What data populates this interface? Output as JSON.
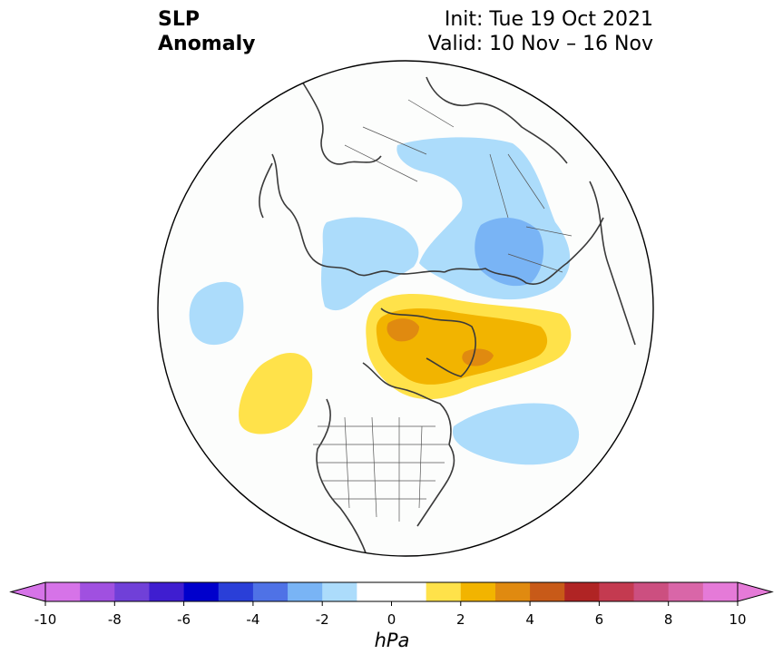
{
  "title": {
    "left_line1": "SLP",
    "left_line2": "Anomaly",
    "right_line1": "Init: Tue 19 Oct 2021",
    "right_line2": "Valid: 10 Nov – 16 Nov"
  },
  "colorbar": {
    "min": -10,
    "max": 10,
    "step": 1,
    "unit": "hPa",
    "ticks": [
      "-10",
      "-8",
      "-6",
      "-4",
      "-2",
      "0",
      "2",
      "4",
      "6",
      "8",
      "10"
    ],
    "tick_values": [
      -10,
      -8,
      -6,
      -4,
      -2,
      0,
      2,
      4,
      6,
      8,
      10
    ],
    "colors": [
      "#d673e8",
      "#a050e0",
      "#7040d8",
      "#3f1ed0",
      "#0000cc",
      "#2a3fd8",
      "#4f72e6",
      "#79b4f5",
      "#acdcfb",
      "#ffffff",
      "#ffffff",
      "#ffe24a",
      "#f2b400",
      "#e08a10",
      "#c85a18",
      "#b02424",
      "#c43a50",
      "#cc4f80",
      "#d966a8",
      "#e57ad8"
    ],
    "extend_low_color": "#d673e8",
    "extend_high_color": "#e57ad8"
  },
  "map": {
    "projection": "north polar stereographic",
    "anomaly_features": [
      {
        "label": "negative anomaly over Scandinavia / Barents Sea",
        "level_hpa": -2
      },
      {
        "label": "stronger negative anomaly over northern Europe",
        "level_hpa": -3
      },
      {
        "label": "negative anomaly over East Siberian Sea / Alaska",
        "level_hpa": -2
      },
      {
        "label": "negative anomaly over western Pacific",
        "level_hpa": -2
      },
      {
        "label": "negative anomaly over eastern Canada / Atlantic",
        "level_hpa": -2
      },
      {
        "label": "positive anomaly over Greenland / Canadian Arctic",
        "level_hpa": 3
      },
      {
        "label": "positive anomaly over northeast Pacific",
        "level_hpa": 1
      }
    ]
  }
}
